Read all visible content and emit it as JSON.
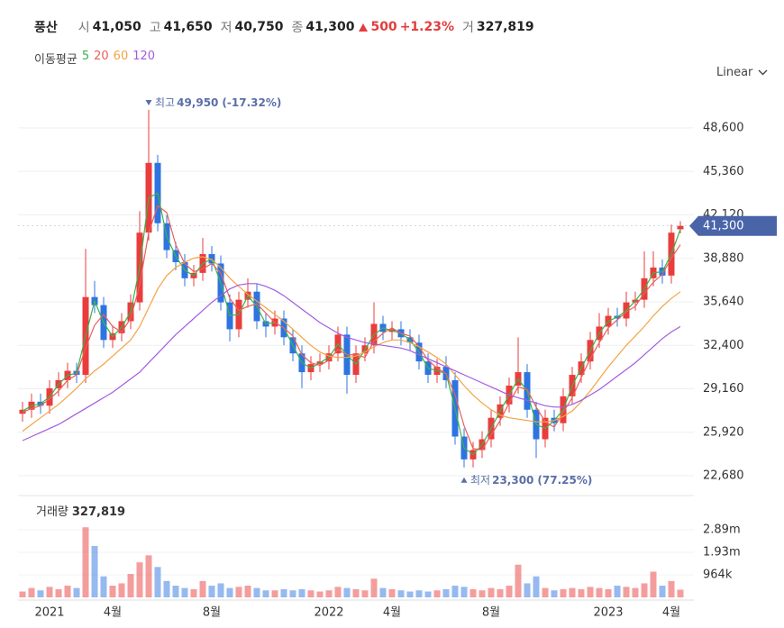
{
  "header": {
    "name": "풍산",
    "items": [
      {
        "label": "시",
        "value": "41,050"
      },
      {
        "label": "고",
        "value": "41,650"
      },
      {
        "label": "저",
        "value": "40,750"
      },
      {
        "label": "종",
        "value": "41,300"
      }
    ],
    "change": "500",
    "change_pct": "+1.23%",
    "volume": {
      "label": "거",
      "value": "327,819"
    }
  },
  "chart_data": {
    "type": "candlestick",
    "scale": "Linear",
    "categories": [
      null,
      null,
      null,
      "2021",
      null,
      null,
      null,
      null,
      null,
      null,
      "4월",
      null,
      null,
      null,
      null,
      null,
      null,
      null,
      null,
      null,
      null,
      "8월",
      null,
      null,
      null,
      null,
      null,
      null,
      null,
      null,
      null,
      null,
      null,
      null,
      "2022",
      null,
      null,
      null,
      null,
      null,
      null,
      "4월",
      null,
      null,
      null,
      null,
      null,
      null,
      null,
      null,
      null,
      null,
      "8월",
      null,
      null,
      null,
      null,
      null,
      null,
      null,
      null,
      null,
      null,
      null,
      null,
      "2023",
      null,
      null,
      null,
      null,
      null,
      null,
      "4월",
      null
    ],
    "open": [
      27300,
      27600,
      28200,
      27900,
      29200,
      29800,
      30500,
      30200,
      36000,
      35400,
      32800,
      33300,
      34200,
      35600,
      40800,
      46000,
      41500,
      39500,
      38600,
      37400,
      37800,
      39200,
      38500,
      35600,
      33600,
      35800,
      36400,
      34200,
      33800,
      34400,
      33000,
      31800,
      30400,
      31000,
      31200,
      31800,
      33200,
      30200,
      31800,
      32400,
      34000,
      33400,
      33600,
      33000,
      32600,
      31200,
      30200,
      30800,
      29800,
      25600,
      23900,
      24600,
      25400,
      27000,
      28000,
      29400,
      30400,
      27600,
      25400,
      27000,
      26600,
      28600,
      30200,
      31200,
      32800,
      33800,
      34600,
      34400,
      35600,
      35800,
      37400,
      38200,
      37600,
      41050
    ],
    "high": [
      28200,
      28800,
      28800,
      29800,
      30400,
      31100,
      31100,
      39600,
      37200,
      36000,
      33900,
      34800,
      36200,
      42400,
      49950,
      46600,
      42100,
      40100,
      39200,
      38400,
      40400,
      39800,
      39100,
      36200,
      36400,
      37400,
      37000,
      34800,
      35000,
      35000,
      33600,
      32400,
      31600,
      31800,
      32400,
      33800,
      33800,
      32400,
      33000,
      35600,
      34600,
      34200,
      34200,
      33600,
      33200,
      31800,
      31400,
      31600,
      30400,
      26200,
      25200,
      26000,
      27600,
      28600,
      30000,
      33000,
      31000,
      28200,
      27600,
      27600,
      29200,
      30800,
      31800,
      33400,
      34800,
      35200,
      35200,
      36400,
      36400,
      39400,
      39400,
      38800,
      41400,
      41650
    ],
    "low": [
      26700,
      27000,
      27300,
      27300,
      28600,
      29200,
      29600,
      29600,
      34800,
      32200,
      32200,
      32700,
      33600,
      35000,
      40200,
      40900,
      38900,
      38000,
      36800,
      36800,
      37200,
      37900,
      35000,
      32700,
      33000,
      35200,
      33600,
      33000,
      33200,
      32400,
      31200,
      29200,
      29800,
      30400,
      30600,
      31200,
      28800,
      29600,
      31200,
      31800,
      32800,
      32800,
      32400,
      32000,
      30600,
      29600,
      29600,
      29200,
      25000,
      23300,
      23300,
      24000,
      24800,
      26400,
      27400,
      28800,
      27000,
      24000,
      24800,
      26000,
      26000,
      28000,
      29600,
      30600,
      32200,
      33200,
      33800,
      33800,
      35000,
      35200,
      36800,
      37000,
      37000,
      40750
    ],
    "close": [
      27600,
      28200,
      27900,
      29200,
      29800,
      30500,
      30200,
      36000,
      35400,
      32800,
      33300,
      34200,
      35600,
      40800,
      46000,
      41500,
      39500,
      38600,
      37400,
      37800,
      39200,
      38500,
      35600,
      33600,
      35800,
      36400,
      34200,
      33800,
      34400,
      33000,
      31800,
      30400,
      31000,
      31200,
      31800,
      33200,
      30200,
      31800,
      32400,
      34000,
      33400,
      33600,
      33000,
      32600,
      31200,
      30200,
      30800,
      29800,
      25600,
      23900,
      24600,
      25400,
      27000,
      28000,
      29400,
      30400,
      27600,
      25400,
      27000,
      26600,
      28600,
      30200,
      31200,
      32800,
      33800,
      34600,
      34400,
      35600,
      35800,
      37400,
      38200,
      37600,
      40800,
      41300
    ],
    "up_color": "#ea3c3c",
    "down_color": "#2e74e0",
    "ylim": [
      21540,
      51760
    ],
    "yticks": [
      {
        "value": 22680,
        "label": "22,680"
      },
      {
        "value": 25920,
        "label": "25,920"
      },
      {
        "value": 29160,
        "label": "29,160"
      },
      {
        "value": 32400,
        "label": "32,400"
      },
      {
        "value": 35640,
        "label": "35,640"
      },
      {
        "value": 38880,
        "label": "38,880"
      },
      {
        "value": 42120,
        "label": "42,120"
      },
      {
        "value": 45360,
        "label": "45,360"
      },
      {
        "value": 48600,
        "label": "48,600"
      }
    ],
    "grid": true,
    "moving_average_label": "이동평균",
    "moving_averages": [
      {
        "name": "5",
        "color": "#3cb24a",
        "values": [
          27500,
          27900,
          28050,
          28550,
          29500,
          30150,
          30350,
          33100,
          35700,
          34100,
          33050,
          33750,
          34900,
          38200,
          43400,
          43750,
          40500,
          39050,
          38000,
          37600,
          38500,
          38850,
          37050,
          34600,
          34700,
          36100,
          35300,
          34000,
          34100,
          33700,
          32400,
          31100,
          30700,
          31100,
          31500,
          32500,
          31700,
          31000,
          32100,
          33200,
          33700,
          33500,
          33300,
          32800,
          31900,
          30700,
          30500,
          30300,
          27700,
          24750,
          24250,
          25000,
          26200,
          27500,
          28700,
          29900,
          29000,
          26500,
          26200,
          26800,
          27600,
          29400,
          30700,
          32000,
          33300,
          34200,
          34500,
          35000,
          35700,
          36600,
          37800,
          37900,
          39200,
          41050
        ]
      },
      {
        "name": "20",
        "color": "#e8605a",
        "values": [
          27400,
          27700,
          27900,
          28400,
          29000,
          29800,
          30200,
          32200,
          33900,
          34700,
          33800,
          33400,
          34400,
          36900,
          40800,
          42800,
          42300,
          39900,
          38500,
          37900,
          38100,
          38500,
          37800,
          35900,
          35000,
          35300,
          35500,
          34800,
          34100,
          33700,
          33100,
          31700,
          31100,
          30900,
          31300,
          32100,
          31700,
          31700,
          31500,
          32700,
          33300,
          33700,
          33300,
          33100,
          32300,
          31300,
          30700,
          30300,
          28700,
          26400,
          24700,
          24600,
          25700,
          26800,
          28100,
          29300,
          29100,
          27800,
          26700,
          26300,
          27400,
          28500,
          30000,
          31400,
          32600,
          33700,
          34300,
          34900,
          35300,
          36300,
          37100,
          37700,
          38900,
          39900
        ]
      },
      {
        "name": "60",
        "color": "#f2a444",
        "values": [
          26000,
          26500,
          27000,
          27500,
          28000,
          28600,
          29200,
          29900,
          30500,
          31000,
          31600,
          32200,
          32800,
          33800,
          35200,
          36600,
          37600,
          38200,
          38600,
          38900,
          39000,
          38800,
          38200,
          37400,
          36800,
          36200,
          35700,
          35200,
          34700,
          34200,
          33600,
          33000,
          32400,
          31900,
          31600,
          31500,
          31500,
          31600,
          31900,
          32300,
          32600,
          32800,
          32800,
          32600,
          32300,
          31900,
          31500,
          31000,
          30200,
          29400,
          28700,
          28100,
          27600,
          27200,
          27000,
          26900,
          26800,
          26700,
          26700,
          26800,
          27100,
          27500,
          28200,
          29000,
          29900,
          30800,
          31600,
          32400,
          33100,
          33800,
          34600,
          35300,
          35900,
          36400
        ]
      },
      {
        "name": "120",
        "color": "#a35ce0",
        "values": [
          25300,
          25600,
          25900,
          26200,
          26500,
          26900,
          27300,
          27700,
          28100,
          28500,
          28900,
          29400,
          29900,
          30400,
          31100,
          31800,
          32500,
          33200,
          33800,
          34400,
          35000,
          35600,
          36100,
          36600,
          36900,
          37000,
          37000,
          36800,
          36500,
          36100,
          35600,
          35100,
          34600,
          34100,
          33700,
          33300,
          33000,
          32800,
          32600,
          32500,
          32400,
          32300,
          32200,
          32000,
          31700,
          31400,
          31100,
          30800,
          30500,
          30200,
          29900,
          29600,
          29300,
          29000,
          28700,
          28500,
          28300,
          28100,
          27900,
          27800,
          27800,
          28000,
          28300,
          28700,
          29100,
          29600,
          30100,
          30600,
          31100,
          31700,
          32300,
          32900,
          33400,
          33800
        ]
      }
    ],
    "high_marker": {
      "label": "최고",
      "value": 49950,
      "value_label": "49,950",
      "note": "(-17.32%)"
    },
    "low_marker": {
      "label": "최저",
      "value": 23300,
      "value_label": "23,300",
      "note": "(77.25%)"
    },
    "last_price": {
      "value": 41300,
      "label": "41,300"
    },
    "volume": {
      "label": "거래량",
      "value_label": "327,819",
      "values": [
        250000,
        400000,
        300000,
        450000,
        350000,
        500000,
        400000,
        3000000,
        2200000,
        900000,
        500000,
        600000,
        1000000,
        1500000,
        1800000,
        1300000,
        700000,
        500000,
        400000,
        350000,
        700000,
        500000,
        600000,
        400000,
        450000,
        500000,
        400000,
        300000,
        300000,
        350000,
        300000,
        350000,
        300000,
        250000,
        300000,
        450000,
        400000,
        350000,
        300000,
        800000,
        400000,
        350000,
        300000,
        250000,
        300000,
        250000,
        300000,
        350000,
        500000,
        450000,
        350000,
        300000,
        400000,
        350000,
        500000,
        1400000,
        600000,
        900000,
        400000,
        300000,
        350000,
        400000,
        350000,
        450000,
        400000,
        350000,
        500000,
        450000,
        400000,
        600000,
        1100000,
        500000,
        700000,
        327819
      ],
      "ylim": [
        0,
        3780000
      ],
      "yticks": [
        {
          "value": 964000,
          "label": "964k"
        },
        {
          "value": 1930000,
          "label": "1.93m"
        },
        {
          "value": 2890000,
          "label": "2.89m"
        }
      ]
    }
  }
}
